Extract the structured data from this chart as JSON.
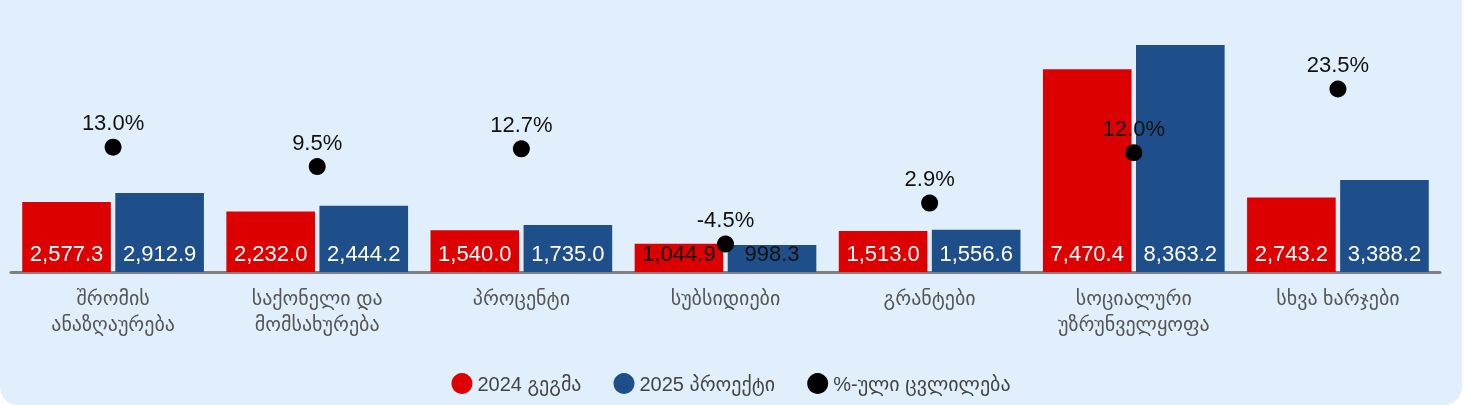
{
  "chart_data": {
    "type": "bar",
    "categories": [
      "შრომის ანაზღაურება",
      "საქონელი და მომსახურება",
      "პროცენტი",
      "სუბსიდიები",
      "გრანტები",
      "სოციალური უზრუნველყოფა",
      "სხვა ხარჯები"
    ],
    "series": [
      {
        "name": "2024 გეგმა",
        "color": "#dd0000",
        "values": [
          2577.3,
          2232.0,
          1540.0,
          1044.9,
          1513.0,
          7470.4,
          2743.2
        ],
        "value_labels": [
          "2,577.3",
          "2,232.0",
          "1,540.0",
          "1,044.9",
          "1,513.0",
          "7,470.4",
          "2,743.2"
        ]
      },
      {
        "name": "2025 პროექტი",
        "color": "#1f4f8b",
        "values": [
          2912.9,
          2444.2,
          1735.0,
          998.3,
          1556.6,
          8363.2,
          3388.2
        ],
        "value_labels": [
          "2,912.9",
          "2,444.2",
          "1,735.0",
          "998.3",
          "1,556.6",
          "8,363.2",
          "3,388.2"
        ]
      },
      {
        "name": "%-ული ცვლილება",
        "type": "scatter",
        "axis": "y2",
        "color": "#000000",
        "x": [
          "შრომის ანაზღაურება",
          "საქონელი და მომსახურება",
          "პროცენტი",
          "სუბსიდიები",
          "გრანტები",
          "სოციალური უზრუნველყოფა",
          "სხვა ხარჯები"
        ],
        "values": [
          13.0,
          9.5,
          12.7,
          -4.5,
          2.9,
          12.0,
          23.5
        ],
        "value_labels": [
          "13.0%",
          "9.5%",
          "12.7%",
          "-4.5%",
          "2.9%",
          "12.0%",
          "23.5%"
        ]
      }
    ],
    "legend": "bottom",
    "grid": false,
    "tick_labels": "x",
    "marker": "circle"
  }
}
